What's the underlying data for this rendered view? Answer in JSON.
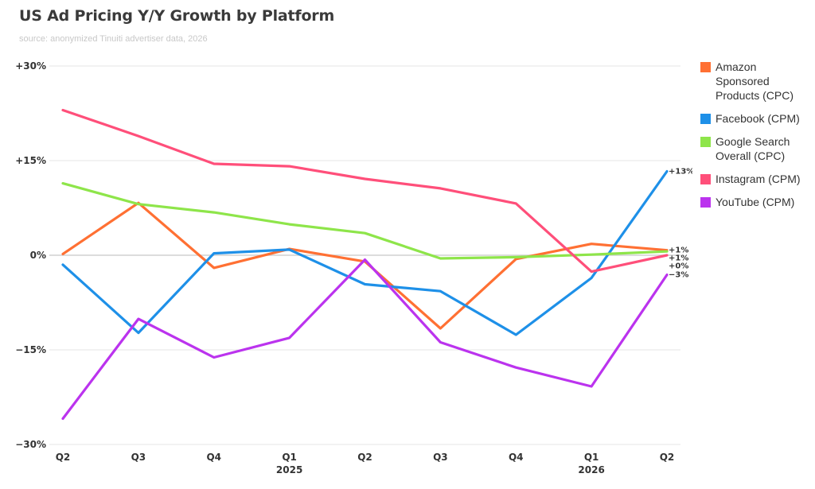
{
  "title": "US Ad Pricing Y/Y Growth by Platform",
  "subtitle": "source: anonymized Tinuiti advertiser data, 2026",
  "chart_data": {
    "type": "line",
    "title": "US Ad Pricing Y/Y Growth by Platform",
    "subtitle": "source: anonymized Tinuiti advertiser data, 2026",
    "categories": [
      "Q2",
      "Q3",
      "Q4",
      "Q1",
      "Q2",
      "Q3",
      "Q4",
      "Q1",
      "Q2"
    ],
    "year_labels": [
      "",
      "",
      "",
      "2025",
      "",
      "",
      "",
      "2026",
      ""
    ],
    "ylim": [
      -30,
      30
    ],
    "yticks": [
      30,
      15,
      0,
      -15,
      -30
    ],
    "ytick_labels": [
      "+30%",
      "+15%",
      "0%",
      "−15%",
      "−30%"
    ],
    "grid": "horizontal",
    "legend_position": "right",
    "series": [
      {
        "name": "Amazon Sponsored Products (CPC)",
        "color": "#ff7033",
        "values": [
          0.2,
          8.3,
          -2.0,
          1.0,
          -1.0,
          -11.6,
          -0.6,
          1.8,
          0.8
        ],
        "end_label": "+1%"
      },
      {
        "name": "Facebook (CPM)",
        "color": "#1e90e8",
        "values": [
          -1.5,
          -12.3,
          0.3,
          0.9,
          -4.6,
          -5.7,
          -12.6,
          -3.6,
          13.3
        ],
        "end_label": "+13%"
      },
      {
        "name": "Google Search Overall (CPC)",
        "color": "#8ee54a",
        "values": [
          11.4,
          8.1,
          6.8,
          4.9,
          3.5,
          -0.5,
          -0.3,
          0.1,
          0.6
        ],
        "end_label": "+1%"
      },
      {
        "name": "Instagram (CPM)",
        "color": "#ff4f7a",
        "values": [
          23.0,
          18.9,
          14.5,
          14.1,
          12.1,
          10.6,
          8.2,
          -2.6,
          0.0
        ],
        "end_label": "+0%"
      },
      {
        "name": "YouTube (CPM)",
        "color": "#bb33ee",
        "values": [
          -25.9,
          -10.1,
          -16.2,
          -13.1,
          -0.7,
          -13.8,
          -17.8,
          -20.8,
          -3.1
        ],
        "end_label": "−3%"
      }
    ]
  }
}
